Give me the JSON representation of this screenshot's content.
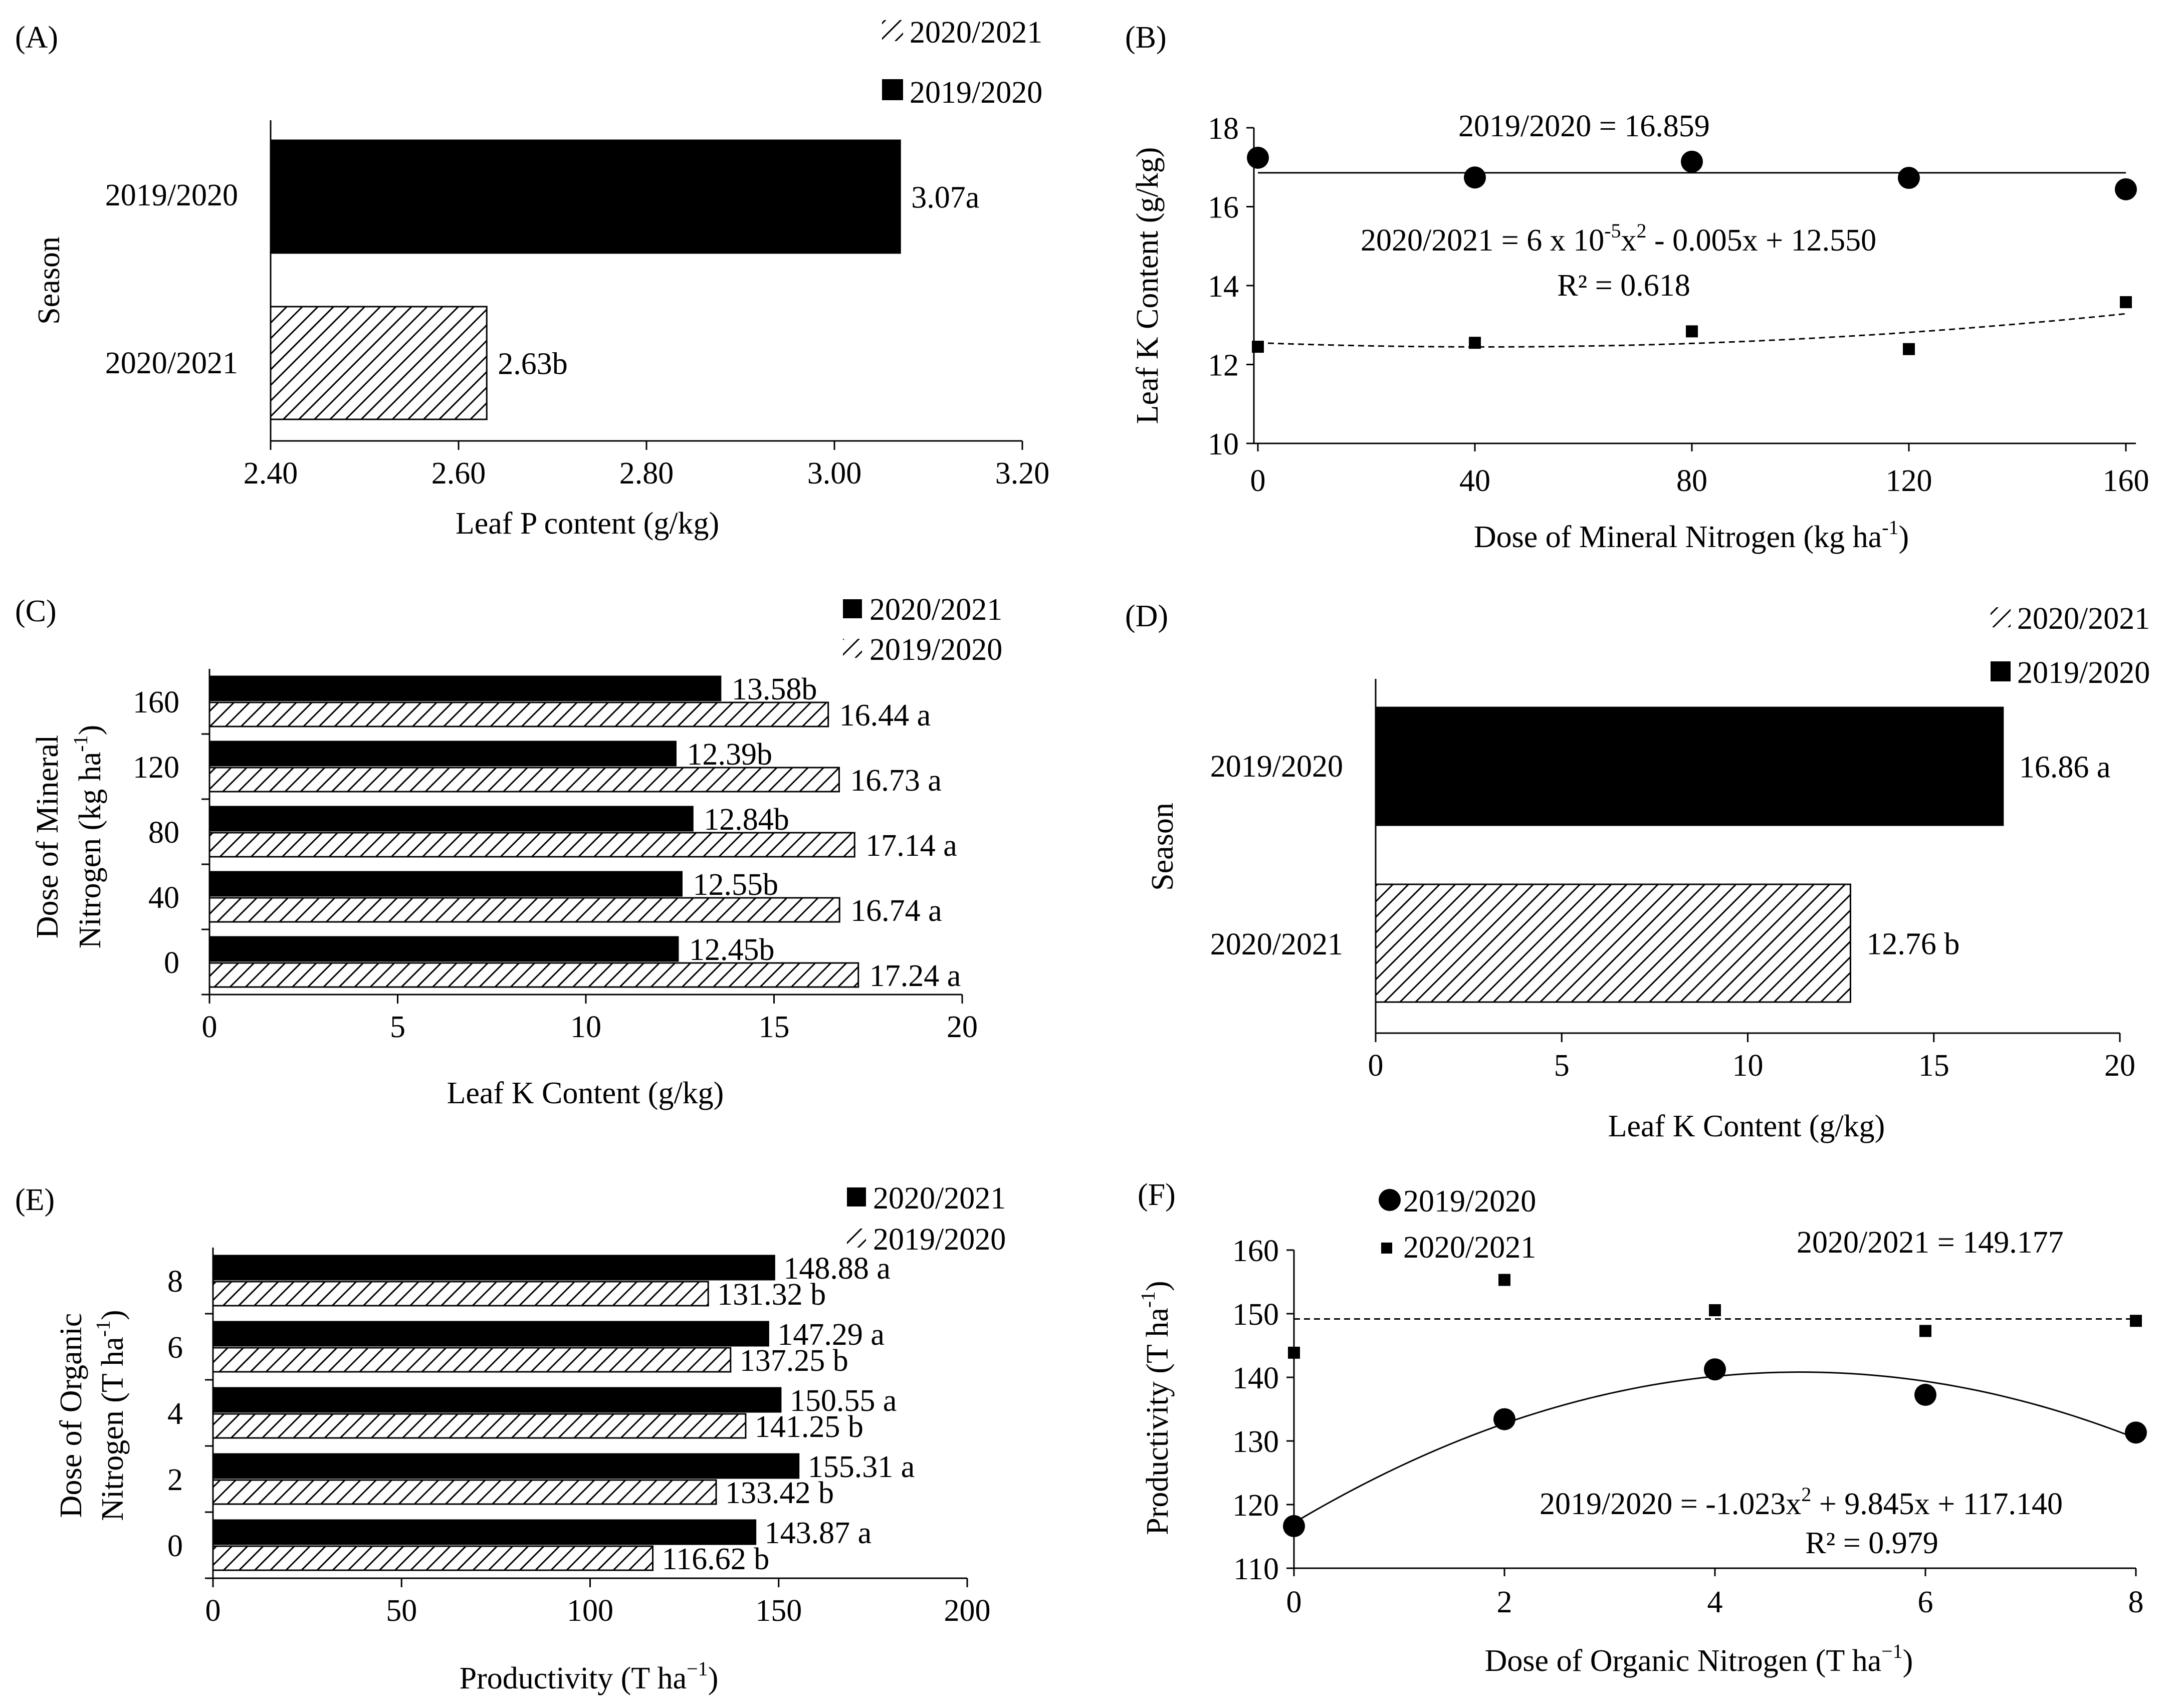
{
  "figure": {
    "description_free": true
  },
  "chart_data": [
    {
      "panel": "(A)",
      "type": "bar",
      "orientation": "horizontal",
      "title": "",
      "xlabel": "Leaf P content (g/kg)",
      "ylabel": "Season",
      "xlim": [
        2.4,
        3.2
      ],
      "xticks": [
        "2.40",
        "2.60",
        "2.80",
        "3.00",
        "3.20"
      ],
      "categories": [
        "2019/2020",
        "2020/2021"
      ],
      "values": [
        3.07,
        2.63
      ],
      "labels": [
        "3.07a",
        "2.63b"
      ],
      "fills": [
        "solid",
        "hatch"
      ],
      "legend": [
        {
          "name": "2020/2021",
          "fill": "hatch"
        },
        {
          "name": "2019/2020",
          "fill": "solid"
        }
      ],
      "legend_position": "top-right"
    },
    {
      "panel": "(B)",
      "type": "scatter",
      "title": "",
      "xlabel": "Dose of Mineral Nitrogen  (kg ha",
      "xlabel_sup": "-1",
      "xlabel_end": ")",
      "ylabel": "Leaf K Content  (g/kg)",
      "xlim": [
        0,
        160
      ],
      "ylim": [
        10,
        18
      ],
      "xticks": [
        "0",
        "40",
        "80",
        "120",
        "160"
      ],
      "yticks": [
        "10",
        "12",
        "14",
        "16",
        "18"
      ],
      "series": [
        {
          "name": "2019/2020",
          "marker": "circle",
          "x": [
            0,
            40,
            80,
            120,
            160
          ],
          "y": [
            17.24,
            16.74,
            17.14,
            16.73,
            16.44
          ],
          "fit": {
            "kind": "constant",
            "value": 16.859,
            "line": "solid"
          }
        },
        {
          "name": "2020/2021",
          "marker": "square",
          "x": [
            0,
            40,
            80,
            120,
            160
          ],
          "y": [
            12.45,
            12.55,
            12.84,
            12.39,
            13.58
          ],
          "fit": {
            "kind": "quadratic",
            "a": 6e-05,
            "b": -0.005,
            "c": 12.55,
            "line": "dashed"
          }
        }
      ],
      "annotations": {
        "eq1": "2019/2020  = 16.859",
        "eq2_pre": "2020/2021  = 6 x 10",
        "eq2_sup1": "-5",
        "eq2_mid": "x",
        "eq2_sup2": "2",
        "eq2_post": " - 0.005x + 12.550",
        "r2": "R² = 0.618"
      }
    },
    {
      "panel": "(C)",
      "type": "bar",
      "orientation": "horizontal",
      "title": "",
      "xlabel": "Leaf K Content  (g/kg)",
      "ylabel_line1": "Dose of Mineral",
      "ylabel_line2": "Nitrogen  (kg ha",
      "ylabel_sup": "-1",
      "ylabel_end": ")",
      "xlim": [
        0,
        20
      ],
      "xticks": [
        "0",
        "5",
        "10",
        "15",
        "20"
      ],
      "categories": [
        "160",
        "120",
        "80",
        "40",
        "0"
      ],
      "series": [
        {
          "name": "2020/2021",
          "fill": "solid",
          "values": [
            13.58,
            12.39,
            12.84,
            12.55,
            12.45
          ],
          "labels": [
            "13.58b",
            "12.39b",
            "12.84b",
            "12.55b",
            "12.45b"
          ]
        },
        {
          "name": "2019/2020",
          "fill": "hatch",
          "values": [
            16.44,
            16.73,
            17.14,
            16.74,
            17.24
          ],
          "labels": [
            "16.44 a",
            "16.73 a",
            "17.14 a",
            "16.74 a",
            "17.24 a"
          ]
        }
      ],
      "legend_position": "top-right"
    },
    {
      "panel": "(D)",
      "type": "bar",
      "orientation": "horizontal",
      "title": "",
      "xlabel": "Leaf K Content  (g/kg)",
      "ylabel": "Season",
      "xlim": [
        0,
        20
      ],
      "xticks": [
        "0",
        "5",
        "10",
        "15",
        "20"
      ],
      "categories": [
        "2019/2020",
        "2020/2021"
      ],
      "values": [
        16.86,
        12.76
      ],
      "labels": [
        "16.86  a",
        "12.76  b"
      ],
      "fills": [
        "solid",
        "hatch"
      ],
      "legend": [
        {
          "name": "2020/2021",
          "fill": "hatch"
        },
        {
          "name": "2019/2020",
          "fill": "solid"
        }
      ],
      "legend_position": "top-right"
    },
    {
      "panel": "(E)",
      "type": "bar",
      "orientation": "horizontal",
      "title": "",
      "xlabel": "Productivity  (T ha",
      "xlabel_sup": "−1",
      "xlabel_end": ")",
      "ylabel_line1": "Dose of Organic",
      "ylabel_line2": "Nitrogen  (T ha",
      "ylabel_sup": "-1",
      "ylabel_end": ")",
      "xlim": [
        0,
        200
      ],
      "xticks": [
        "0",
        "50",
        "100",
        "150",
        "200"
      ],
      "categories": [
        "8",
        "6",
        "4",
        "2",
        "0"
      ],
      "series": [
        {
          "name": "2020/2021",
          "fill": "solid",
          "values": [
            148.88,
            147.29,
            150.55,
            155.31,
            143.87
          ],
          "labels": [
            "148.88  a",
            "147.29  a",
            "150.55  a",
            "155.31  a",
            "143.87  a"
          ]
        },
        {
          "name": "2019/2020",
          "fill": "hatch",
          "values": [
            131.32,
            137.25,
            141.25,
            133.42,
            116.62
          ],
          "labels": [
            "131.32  b",
            "137.25  b",
            "141.25  b",
            "133.42  b",
            "116.62  b"
          ]
        }
      ],
      "legend_position": "top-right"
    },
    {
      "panel": "(F)",
      "type": "scatter",
      "title": "",
      "xlabel": "Dose of Organic  Nitrogen  (T ha",
      "xlabel_sup": "−1",
      "xlabel_end": ")",
      "ylabel": "Productivity  (T ha",
      "ylabel_sup": "-1",
      "ylabel_end": ")",
      "xlim": [
        0,
        8
      ],
      "ylim": [
        110,
        160
      ],
      "xticks": [
        "0",
        "2",
        "4",
        "6",
        "8"
      ],
      "yticks": [
        "110",
        "120",
        "130",
        "140",
        "150",
        "160"
      ],
      "series": [
        {
          "name": "2019/2020",
          "marker": "circle",
          "x": [
            0,
            2,
            4,
            6,
            8
          ],
          "y": [
            116.62,
            133.42,
            141.25,
            137.25,
            131.32
          ],
          "fit": {
            "kind": "quadratic",
            "a": -1.023,
            "b": 9.845,
            "c": 117.14,
            "line": "solid"
          }
        },
        {
          "name": "2020/2021",
          "marker": "square",
          "x": [
            0,
            2,
            4,
            6,
            8
          ],
          "y": [
            143.87,
            155.31,
            150.55,
            147.29,
            148.88
          ],
          "fit": {
            "kind": "constant",
            "value": 149.177,
            "line": "dashed"
          }
        }
      ],
      "legend_position": "top-left",
      "annotations": {
        "eq1": "2020/2021  = 149.177",
        "eq2_pre": "2019/2020  = -1.023x",
        "eq2_sup": "2",
        "eq2_post": " + 9.845x + 117.140",
        "r2": "R² = 0.979"
      }
    }
  ]
}
